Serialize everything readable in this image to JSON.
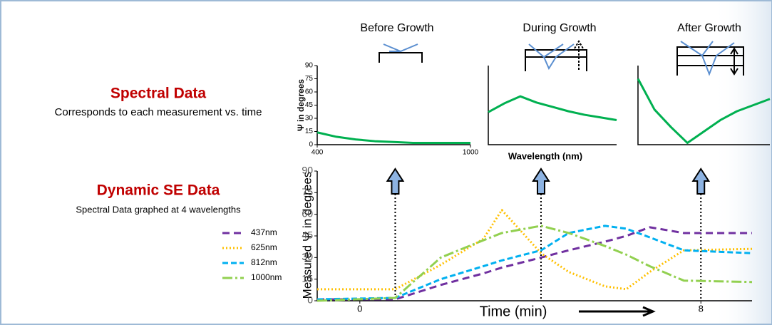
{
  "slide": {
    "heading1": "Spectral Data",
    "text1": "Corresponds to each measurement vs. time",
    "heading2": "Dynamic SE Data",
    "text2": "Spectral Data graphed at 4 wavelengths"
  },
  "chart_data": [
    {
      "type": "line",
      "title": "Before Growth",
      "y_label": "Ψ in degrees",
      "x": [
        400,
        475,
        550,
        625,
        700,
        775,
        850,
        925,
        1000
      ],
      "series": [
        {
          "name": "Before Growth",
          "color": "#00b050",
          "values": [
            14,
            9,
            6,
            4,
            3,
            2,
            2,
            2,
            2
          ]
        }
      ],
      "xlim": [
        400,
        1000
      ],
      "ylim": [
        0,
        90
      ],
      "xticks": [
        400,
        1000
      ],
      "yticks": [
        0,
        15,
        30,
        45,
        60,
        75,
        90
      ]
    },
    {
      "type": "line",
      "title": "During Growth",
      "x_label": "Wavelength (nm)",
      "x": [
        400,
        475,
        550,
        625,
        700,
        775,
        850,
        925,
        1000
      ],
      "series": [
        {
          "name": "During Growth",
          "color": "#00b050",
          "values": [
            37,
            47,
            55,
            48,
            43,
            38,
            34,
            31,
            28
          ]
        }
      ],
      "xlim": [
        400,
        1000
      ],
      "ylim": [
        0,
        90
      ]
    },
    {
      "type": "line",
      "title": "After Growth",
      "x": [
        400,
        475,
        550,
        625,
        700,
        775,
        850,
        925,
        1000
      ],
      "series": [
        {
          "name": "After Growth",
          "color": "#00b050",
          "values": [
            75,
            40,
            20,
            2,
            15,
            28,
            38,
            45,
            52
          ]
        }
      ],
      "xlim": [
        400,
        1000
      ],
      "ylim": [
        0,
        90
      ]
    },
    {
      "type": "line",
      "x_label": "Time (min)",
      "y_label": "Measured Ψ in degrees",
      "x": [
        -1,
        0.83,
        1.9,
        2.9,
        3.33,
        4.25,
        4.9,
        5.75,
        6.25,
        6.8,
        7.6,
        9.2
      ],
      "series": [
        {
          "name": "437nm",
          "color": "#7030a0",
          "dash": "10 6",
          "values": [
            1,
            1,
            11,
            19,
            23,
            30,
            35,
            41,
            45,
            51,
            47,
            47
          ]
        },
        {
          "name": "625nm",
          "color": "#ffc000",
          "dash": "2 3",
          "values": [
            8,
            8,
            25,
            43,
            63,
            33,
            20,
            10,
            8,
            20,
            35,
            36
          ]
        },
        {
          "name": "812nm",
          "color": "#00b0f0",
          "dash": "8 4",
          "values": [
            1,
            2,
            15,
            24,
            28,
            35,
            47,
            52,
            50,
            44,
            35,
            33
          ]
        },
        {
          "name": "1000nm",
          "color": "#92d050",
          "dash": "14 4 3 4",
          "values": [
            0,
            2,
            30,
            42,
            47,
            52,
            47,
            38,
            32,
            24,
            14,
            13
          ]
        }
      ],
      "markers_x": [
        0.83,
        4.25,
        8
      ],
      "xlim": [
        -1,
        9.2
      ],
      "ylim": [
        0,
        90
      ],
      "xticks": [
        0,
        8
      ],
      "yticks": [
        0,
        15,
        30,
        45,
        60,
        75,
        90
      ]
    }
  ]
}
